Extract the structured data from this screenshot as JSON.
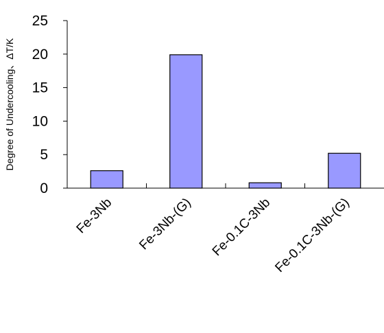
{
  "chart_data": {
    "type": "bar",
    "title": "",
    "xlabel": "",
    "ylabel": "Degree of Undercooling、ΔT/K",
    "categories": [
      "Fe-3Nb",
      "Fe-3Nb-(G)",
      "Fe-0.1C-3Nb",
      "Fe-0.1C-3Nb-(G)"
    ],
    "values": [
      2.6,
      19.9,
      0.8,
      5.2
    ],
    "ylim": [
      0,
      25
    ],
    "yticks": [
      "0",
      "5",
      "10",
      "15",
      "20",
      "25"
    ],
    "grid": false,
    "legend": "none",
    "colors": {
      "bar_fill": "#9999ff",
      "bar_stroke": "#000000",
      "axis": "#000000"
    }
  }
}
